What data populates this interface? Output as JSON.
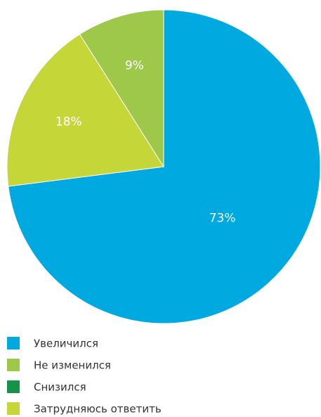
{
  "chart_data": {
    "type": "pie",
    "categories": [
      "Увеличился",
      "Не изменился",
      "Снизился",
      "Затрудняюсь ответить"
    ],
    "values": [
      73,
      9,
      0,
      18
    ],
    "value_labels": [
      "73%",
      "9%",
      null,
      "18%"
    ],
    "colors": [
      "#00a9e0",
      "#9dc84a",
      "#15934a",
      "#c5d638"
    ]
  }
}
